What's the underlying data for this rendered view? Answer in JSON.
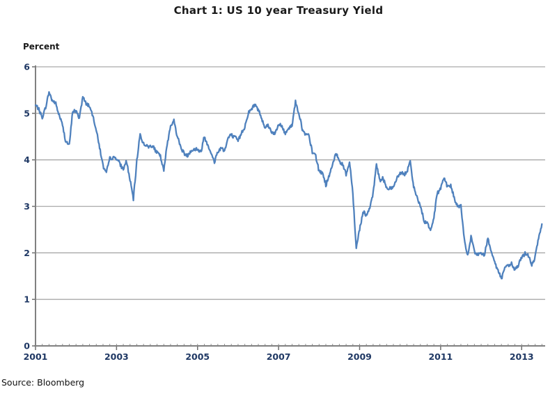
{
  "page": {
    "title": "Chart 1: US 10 year Treasury Yield",
    "source": "Source: Bloomberg"
  },
  "chart_data": {
    "type": "line",
    "title": "Chart 1: US 10 year Treasury Yield",
    "ylabel": "Percent",
    "xlabel": "",
    "source": "Source: Bloomberg",
    "legend_position": "none",
    "grid": "horizontal-only",
    "ylim": [
      0,
      6
    ],
    "x_range_years": [
      2001,
      2013.58
    ],
    "x_tick_labels": [
      "2001",
      "2003",
      "2005",
      "2007",
      "2009",
      "2011",
      "2013"
    ],
    "y_tick_labels": [
      "0",
      "1",
      "2",
      "3",
      "4",
      "5",
      "6"
    ],
    "line_color": "#4F81BD",
    "axis_color": "#808080",
    "gridline_color": "#A9A9A9",
    "tick_label_color": "#1F3864",
    "title_color": "#1A1A1A",
    "series": [
      {
        "name": "US 10 year Treasury Yield",
        "frequency": "monthly",
        "start": "2001-01",
        "end": "2013-07",
        "values": [
          5.16,
          5.1,
          4.89,
          5.14,
          5.45,
          5.28,
          5.2,
          4.97,
          4.73,
          4.4,
          4.3,
          5.05,
          5.04,
          4.91,
          5.35,
          5.21,
          5.16,
          4.93,
          4.65,
          4.26,
          3.87,
          3.7,
          4.05,
          4.03,
          4.05,
          3.9,
          3.81,
          3.96,
          3.57,
          3.15,
          3.98,
          4.55,
          4.35,
          4.29,
          4.3,
          4.27,
          4.15,
          4.08,
          3.75,
          4.35,
          4.72,
          4.85,
          4.5,
          4.28,
          4.13,
          4.1,
          4.19,
          4.23,
          4.22,
          4.17,
          4.5,
          4.34,
          4.14,
          3.95,
          4.18,
          4.26,
          4.2,
          4.46,
          4.54,
          4.47,
          4.42,
          4.57,
          4.72,
          4.99,
          5.11,
          5.18,
          5.09,
          4.88,
          4.72,
          4.73,
          4.6,
          4.56,
          4.76,
          4.72,
          4.56,
          4.69,
          4.75,
          5.25,
          5.0,
          4.67,
          4.52,
          4.53,
          4.15,
          4.1,
          3.74,
          3.74,
          3.45,
          3.68,
          3.88,
          4.15,
          3.99,
          3.89,
          3.69,
          3.95,
          3.3,
          2.1,
          2.52,
          2.87,
          2.82,
          2.93,
          3.29,
          3.9,
          3.56,
          3.59,
          3.4,
          3.39,
          3.4,
          3.59,
          3.73,
          3.69,
          3.73,
          3.95,
          3.42,
          3.2,
          3.01,
          2.7,
          2.65,
          2.5,
          2.76,
          3.29,
          3.39,
          3.65,
          3.41,
          3.46,
          3.17,
          3.0,
          3.0,
          2.3,
          1.92,
          2.35,
          2.01,
          1.98,
          1.97,
          1.97,
          2.3,
          2.05,
          1.8,
          1.62,
          1.45,
          1.68,
          1.72,
          1.75,
          1.65,
          1.72,
          1.91,
          1.98,
          1.96,
          1.73,
          1.93,
          2.3,
          2.62
        ]
      }
    ]
  }
}
